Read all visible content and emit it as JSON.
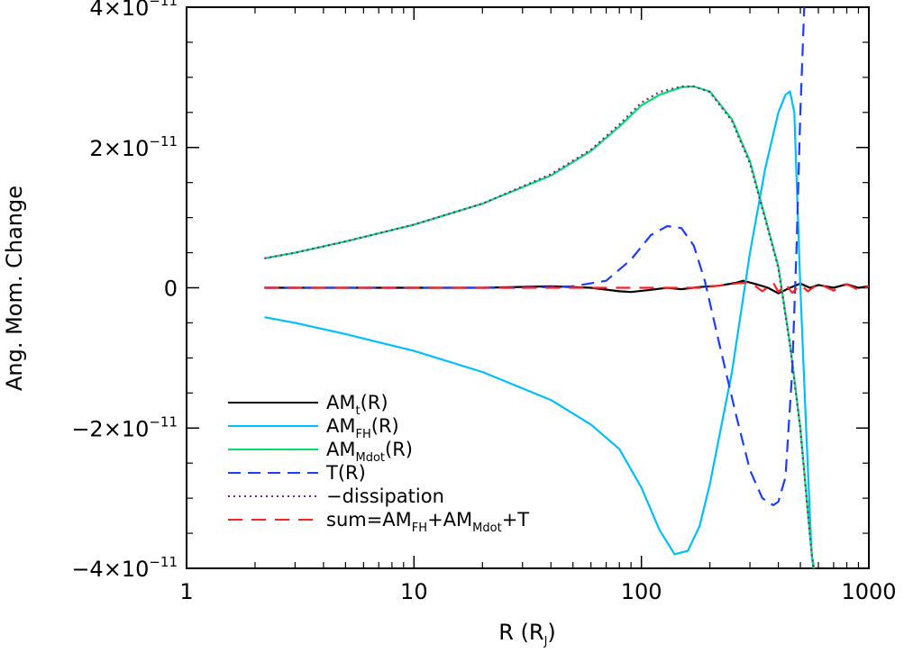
{
  "chart_data": {
    "type": "line",
    "xlabel": "R (R",
    "xlabel_sub": "J",
    "xlabel_close": ")",
    "ylabel": "Ang. Mom. Change",
    "x_scale": "log",
    "xlim": [
      1,
      1000
    ],
    "ylim": [
      -4e-11,
      4e-11
    ],
    "x_ticks": [
      1,
      10,
      100,
      1000
    ],
    "x_tick_labels": [
      "1",
      "10",
      "100",
      "1000"
    ],
    "y_ticks": [
      {
        "value": 4e-11,
        "mantissa": "4×10",
        "exp": "−11"
      },
      {
        "value": 2e-11,
        "mantissa": "2×10",
        "exp": "−11"
      },
      {
        "value": 0,
        "mantissa": "0",
        "exp": ""
      },
      {
        "value": -2e-11,
        "mantissa": "−2×10",
        "exp": "−11"
      },
      {
        "value": -4e-11,
        "mantissa": "−4×10",
        "exp": "−11"
      }
    ],
    "legend_position": "bottom-left",
    "series": [
      {
        "label": "AM",
        "label_sub": "t",
        "label_tail": "(R)",
        "color": "#000000",
        "style": "solid",
        "x": [
          2.2,
          5,
          10,
          20,
          40,
          60,
          80,
          90,
          110,
          130,
          150,
          180,
          220,
          260,
          280,
          320,
          360,
          400,
          450,
          500,
          550,
          600,
          700,
          800,
          900,
          1000
        ],
        "y": [
          0,
          0,
          0,
          0,
          2e-13,
          0,
          -5e-13,
          -6e-13,
          -3e-13,
          0,
          -2e-13,
          1e-13,
          3e-13,
          7e-13,
          1e-12,
          5e-13,
          0,
          -8e-13,
          0,
          6e-13,
          0,
          4e-13,
          0,
          5e-13,
          0,
          2e-13
        ]
      },
      {
        "label": "AM",
        "label_sub": "FH",
        "label_tail": "(R)",
        "color": "#00bfff",
        "style": "solid",
        "x": [
          2.2,
          3,
          5,
          10,
          20,
          40,
          60,
          80,
          100,
          120,
          140,
          160,
          180,
          200,
          250,
          300,
          350,
          400,
          430,
          450,
          470,
          500,
          530,
          560,
          575
        ],
        "y": [
          -4.2e-12,
          -5e-12,
          -6.6e-12,
          -9e-12,
          -1.2e-11,
          -1.6e-11,
          -1.95e-11,
          -2.3e-11,
          -2.85e-11,
          -3.45e-11,
          -3.8e-11,
          -3.75e-11,
          -3.4e-11,
          -2.8e-11,
          -1.2e-11,
          5e-12,
          1.7e-11,
          2.5e-11,
          2.75e-11,
          2.8e-11,
          2.5e-11,
          0,
          -2e-11,
          -3.8e-11,
          -4e-11
        ]
      },
      {
        "label": "AM",
        "label_sub": "Mdot",
        "label_tail": "(R)",
        "color": "#00e070",
        "style": "solid",
        "x": [
          2.2,
          3,
          5,
          10,
          20,
          40,
          60,
          80,
          100,
          120,
          150,
          170,
          200,
          250,
          300,
          350,
          400,
          450,
          500,
          550,
          570
        ],
        "y": [
          4.2e-12,
          5e-12,
          6.6e-12,
          9e-12,
          1.2e-11,
          1.6e-11,
          1.95e-11,
          2.3e-11,
          2.6e-11,
          2.75e-11,
          2.86e-11,
          2.87e-11,
          2.8e-11,
          2.4e-11,
          1.8e-11,
          1e-11,
          3e-12,
          -8e-12,
          -2e-11,
          -3.5e-11,
          -4e-11
        ]
      },
      {
        "label": "T(R)",
        "label_sub": "",
        "label_tail": "",
        "color": "#1c3cff",
        "style": "dashed",
        "x": [
          2.2,
          10,
          30,
          50,
          70,
          90,
          110,
          130,
          150,
          170,
          190,
          220,
          260,
          300,
          340,
          380,
          400,
          430,
          460,
          480,
          500,
          520
        ],
        "y": [
          0,
          0,
          0,
          2e-13,
          1e-12,
          4e-12,
          7.5e-12,
          8.8e-12,
          8.5e-12,
          6e-12,
          1e-12,
          -8e-12,
          -1.8e-11,
          -2.6e-11,
          -3e-11,
          -3.1e-11,
          -3.05e-11,
          -2.7e-11,
          -1.2e-11,
          5e-12,
          2.5e-11,
          4e-11
        ]
      },
      {
        "label": "−dissipation",
        "label_sub": "",
        "label_tail": "",
        "color": "#7a1e9c",
        "style": "dotted",
        "x": [
          2.2,
          3,
          5,
          10,
          20,
          40,
          60,
          80,
          100,
          120,
          150,
          170,
          200,
          250,
          300,
          350,
          400,
          450,
          500,
          550,
          570
        ],
        "y": [
          4.2e-12,
          5e-12,
          6.6e-12,
          9e-12,
          1.2e-11,
          1.62e-11,
          1.97e-11,
          2.33e-11,
          2.64e-11,
          2.79e-11,
          2.87e-11,
          2.87e-11,
          2.79e-11,
          2.38e-11,
          1.77e-11,
          9.8e-12,
          2.8e-12,
          -8.2e-12,
          -2.02e-11,
          -3.52e-11,
          -4e-11
        ]
      },
      {
        "label": "sum=AM",
        "label_sub": "FH",
        "label_tail": "+AM",
        "label_sub2": "Mdot",
        "label_tail2": "+T",
        "color": "#ff2020",
        "style": "longdash",
        "x": [
          2.2,
          10,
          40,
          90,
          130,
          180,
          220,
          260,
          300,
          340,
          380,
          400,
          430,
          460,
          500,
          540,
          600,
          700,
          800,
          900,
          1000
        ],
        "y": [
          0,
          0,
          0,
          0,
          0,
          0,
          3e-13,
          6e-13,
          8e-13,
          -5e-13,
          7e-13,
          -6e-13,
          5e-13,
          -7e-13,
          4e-13,
          -5e-13,
          6e-13,
          -4e-13,
          5e-13,
          -3e-13,
          2e-13
        ]
      }
    ]
  }
}
